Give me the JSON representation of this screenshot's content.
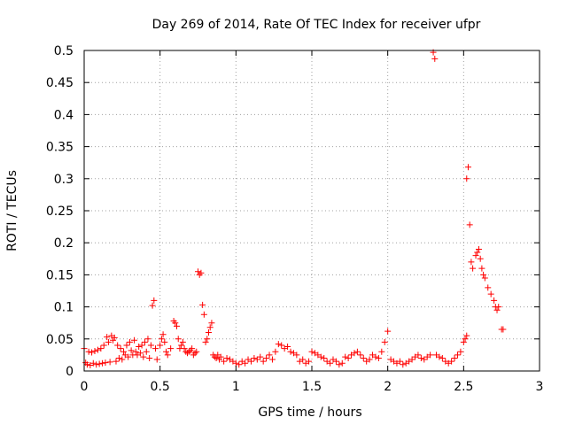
{
  "chart_data": {
    "type": "scatter",
    "title": "Day 269 of 2014, Rate Of TEC Index for receiver ufpr",
    "xlabel": "GPS time / hours",
    "ylabel": "ROTI / TECUs",
    "xlim": [
      0,
      3
    ],
    "ylim": [
      0,
      0.5
    ],
    "grid": true,
    "marker": "+",
    "marker_color": "#ff0000",
    "axis_color": "#000000",
    "grid_color": "#a0a0a0",
    "x_ticks": [
      0,
      0.5,
      1,
      1.5,
      2,
      2.5,
      3
    ],
    "x_tick_labels": [
      "0",
      "0.5",
      "1",
      "1.5",
      "2",
      "2.5",
      "3"
    ],
    "y_ticks": [
      0,
      0.05,
      0.1,
      0.15,
      0.2,
      0.25,
      0.3,
      0.35,
      0.4,
      0.45,
      0.5
    ],
    "y_tick_labels": [
      "0",
      "0.05",
      "0.1",
      "0.15",
      "0.2",
      "0.25",
      "0.3",
      "0.35",
      "0.4",
      "0.45",
      "0.5"
    ],
    "series": [
      {
        "name": "ROTI",
        "points": [
          [
            0.0,
            0.035
          ],
          [
            0.01,
            0.013
          ],
          [
            0.02,
            0.01
          ],
          [
            0.03,
            0.03
          ],
          [
            0.04,
            0.009
          ],
          [
            0.05,
            0.029
          ],
          [
            0.06,
            0.012
          ],
          [
            0.07,
            0.031
          ],
          [
            0.08,
            0.01
          ],
          [
            0.09,
            0.033
          ],
          [
            0.1,
            0.011
          ],
          [
            0.11,
            0.035
          ],
          [
            0.12,
            0.012
          ],
          [
            0.13,
            0.04
          ],
          [
            0.14,
            0.013
          ],
          [
            0.15,
            0.053
          ],
          [
            0.16,
            0.045
          ],
          [
            0.17,
            0.014
          ],
          [
            0.18,
            0.055
          ],
          [
            0.19,
            0.048
          ],
          [
            0.2,
            0.052
          ],
          [
            0.21,
            0.015
          ],
          [
            0.22,
            0.04
          ],
          [
            0.23,
            0.02
          ],
          [
            0.24,
            0.035
          ],
          [
            0.25,
            0.018
          ],
          [
            0.26,
            0.03
          ],
          [
            0.27,
            0.025
          ],
          [
            0.28,
            0.04
          ],
          [
            0.29,
            0.022
          ],
          [
            0.3,
            0.045
          ],
          [
            0.31,
            0.032
          ],
          [
            0.32,
            0.025
          ],
          [
            0.33,
            0.048
          ],
          [
            0.34,
            0.03
          ],
          [
            0.35,
            0.025
          ],
          [
            0.36,
            0.038
          ],
          [
            0.37,
            0.028
          ],
          [
            0.38,
            0.04
          ],
          [
            0.39,
            0.022
          ],
          [
            0.4,
            0.045
          ],
          [
            0.41,
            0.03
          ],
          [
            0.42,
            0.05
          ],
          [
            0.43,
            0.02
          ],
          [
            0.44,
            0.04
          ],
          [
            0.45,
            0.102
          ],
          [
            0.46,
            0.11
          ],
          [
            0.47,
            0.035
          ],
          [
            0.48,
            0.018
          ],
          [
            0.5,
            0.04
          ],
          [
            0.51,
            0.05
          ],
          [
            0.52,
            0.057
          ],
          [
            0.53,
            0.045
          ],
          [
            0.54,
            0.03
          ],
          [
            0.55,
            0.025
          ],
          [
            0.57,
            0.035
          ],
          [
            0.59,
            0.078
          ],
          [
            0.6,
            0.075
          ],
          [
            0.61,
            0.07
          ],
          [
            0.62,
            0.05
          ],
          [
            0.63,
            0.035
          ],
          [
            0.64,
            0.04
          ],
          [
            0.65,
            0.045
          ],
          [
            0.66,
            0.035
          ],
          [
            0.67,
            0.03
          ],
          [
            0.68,
            0.028
          ],
          [
            0.69,
            0.03
          ],
          [
            0.7,
            0.032
          ],
          [
            0.71,
            0.035
          ],
          [
            0.72,
            0.025
          ],
          [
            0.73,
            0.028
          ],
          [
            0.74,
            0.03
          ],
          [
            0.75,
            0.155
          ],
          [
            0.76,
            0.15
          ],
          [
            0.77,
            0.153
          ],
          [
            0.78,
            0.103
          ],
          [
            0.79,
            0.088
          ],
          [
            0.8,
            0.045
          ],
          [
            0.81,
            0.05
          ],
          [
            0.82,
            0.06
          ],
          [
            0.83,
            0.068
          ],
          [
            0.84,
            0.075
          ],
          [
            0.85,
            0.025
          ],
          [
            0.86,
            0.022
          ],
          [
            0.87,
            0.02
          ],
          [
            0.88,
            0.025
          ],
          [
            0.89,
            0.018
          ],
          [
            0.9,
            0.022
          ],
          [
            0.92,
            0.015
          ],
          [
            0.94,
            0.02
          ],
          [
            0.96,
            0.018
          ],
          [
            0.98,
            0.015
          ],
          [
            1.0,
            0.012
          ],
          [
            1.02,
            0.01
          ],
          [
            1.04,
            0.015
          ],
          [
            1.06,
            0.012
          ],
          [
            1.08,
            0.018
          ],
          [
            1.1,
            0.015
          ],
          [
            1.12,
            0.02
          ],
          [
            1.14,
            0.018
          ],
          [
            1.16,
            0.022
          ],
          [
            1.18,
            0.015
          ],
          [
            1.2,
            0.02
          ],
          [
            1.22,
            0.025
          ],
          [
            1.24,
            0.018
          ],
          [
            1.26,
            0.03
          ],
          [
            1.28,
            0.042
          ],
          [
            1.3,
            0.04
          ],
          [
            1.32,
            0.035
          ],
          [
            1.34,
            0.038
          ],
          [
            1.36,
            0.03
          ],
          [
            1.38,
            0.028
          ],
          [
            1.4,
            0.025
          ],
          [
            1.42,
            0.015
          ],
          [
            1.44,
            0.018
          ],
          [
            1.46,
            0.012
          ],
          [
            1.48,
            0.015
          ],
          [
            1.5,
            0.03
          ],
          [
            1.52,
            0.028
          ],
          [
            1.54,
            0.025
          ],
          [
            1.56,
            0.022
          ],
          [
            1.58,
            0.02
          ],
          [
            1.6,
            0.015
          ],
          [
            1.62,
            0.012
          ],
          [
            1.64,
            0.018
          ],
          [
            1.66,
            0.015
          ],
          [
            1.68,
            0.01
          ],
          [
            1.7,
            0.012
          ],
          [
            1.72,
            0.022
          ],
          [
            1.74,
            0.02
          ],
          [
            1.76,
            0.025
          ],
          [
            1.78,
            0.028
          ],
          [
            1.8,
            0.03
          ],
          [
            1.82,
            0.025
          ],
          [
            1.84,
            0.02
          ],
          [
            1.86,
            0.015
          ],
          [
            1.88,
            0.018
          ],
          [
            1.9,
            0.025
          ],
          [
            1.92,
            0.022
          ],
          [
            1.94,
            0.02
          ],
          [
            1.96,
            0.03
          ],
          [
            1.98,
            0.045
          ],
          [
            2.0,
            0.062
          ],
          [
            2.02,
            0.018
          ],
          [
            2.04,
            0.015
          ],
          [
            2.06,
            0.012
          ],
          [
            2.08,
            0.015
          ],
          [
            2.1,
            0.01
          ],
          [
            2.12,
            0.012
          ],
          [
            2.14,
            0.015
          ],
          [
            2.16,
            0.018
          ],
          [
            2.18,
            0.022
          ],
          [
            2.2,
            0.025
          ],
          [
            2.22,
            0.02
          ],
          [
            2.24,
            0.018
          ],
          [
            2.26,
            0.022
          ],
          [
            2.28,
            0.025
          ],
          [
            2.3,
            0.497
          ],
          [
            2.31,
            0.487
          ],
          [
            2.32,
            0.025
          ],
          [
            2.34,
            0.022
          ],
          [
            2.36,
            0.02
          ],
          [
            2.38,
            0.015
          ],
          [
            2.4,
            0.012
          ],
          [
            2.42,
            0.015
          ],
          [
            2.44,
            0.02
          ],
          [
            2.46,
            0.025
          ],
          [
            2.48,
            0.03
          ],
          [
            2.5,
            0.045
          ],
          [
            2.51,
            0.05
          ],
          [
            2.52,
            0.055
          ],
          [
            2.52,
            0.3
          ],
          [
            2.53,
            0.318
          ],
          [
            2.54,
            0.228
          ],
          [
            2.55,
            0.17
          ],
          [
            2.56,
            0.16
          ],
          [
            2.58,
            0.18
          ],
          [
            2.59,
            0.185
          ],
          [
            2.6,
            0.19
          ],
          [
            2.61,
            0.175
          ],
          [
            2.62,
            0.16
          ],
          [
            2.63,
            0.15
          ],
          [
            2.64,
            0.145
          ],
          [
            2.66,
            0.13
          ],
          [
            2.68,
            0.12
          ],
          [
            2.7,
            0.11
          ],
          [
            2.71,
            0.1
          ],
          [
            2.72,
            0.095
          ],
          [
            2.73,
            0.1
          ],
          [
            2.75,
            0.065
          ],
          [
            2.76,
            0.065
          ]
        ]
      }
    ]
  }
}
